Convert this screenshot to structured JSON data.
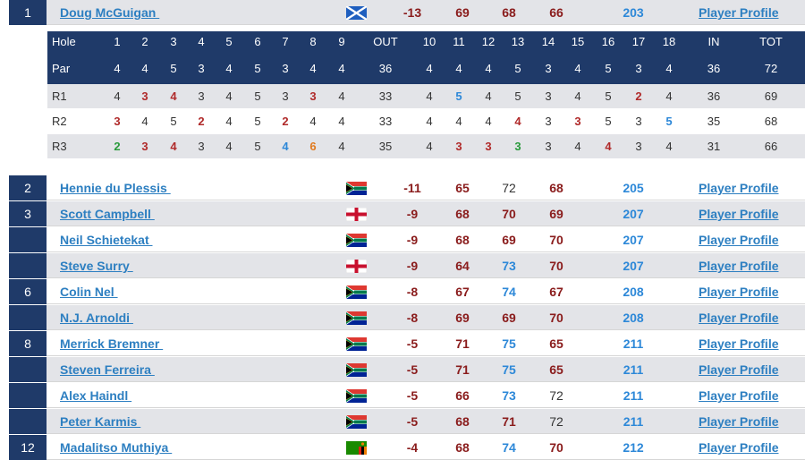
{
  "leader": {
    "pos": "1",
    "name": "Doug McGuigan ",
    "flag": "scotland-flag",
    "par": "-13",
    "r1": "69",
    "r2": "68",
    "r3": "66",
    "total": "203",
    "link": "Player Profile"
  },
  "scorecard": {
    "hole_label": "Hole",
    "par_label": "Par",
    "holes": [
      "1",
      "2",
      "3",
      "4",
      "5",
      "6",
      "7",
      "8",
      "9",
      "OUT",
      "10",
      "11",
      "12",
      "13",
      "14",
      "15",
      "16",
      "17",
      "18",
      "IN",
      "TOT"
    ],
    "pars": [
      "4",
      "4",
      "5",
      "3",
      "4",
      "5",
      "3",
      "4",
      "4",
      "36",
      "4",
      "4",
      "4",
      "5",
      "3",
      "4",
      "5",
      "3",
      "4",
      "36",
      "72"
    ],
    "rounds": [
      {
        "label": "R1",
        "scores": [
          "4",
          "3",
          "4",
          "3",
          "4",
          "5",
          "3",
          "3",
          "4",
          "33",
          "4",
          "5",
          "4",
          "5",
          "3",
          "4",
          "5",
          "2",
          "4",
          "36",
          "69"
        ],
        "styles": [
          "n",
          "r",
          "r",
          "n",
          "n",
          "n",
          "n",
          "r",
          "n",
          "n",
          "n",
          "b",
          "n",
          "n",
          "n",
          "n",
          "n",
          "r",
          "n",
          "n",
          "n"
        ]
      },
      {
        "label": "R2",
        "scores": [
          "3",
          "4",
          "5",
          "2",
          "4",
          "5",
          "2",
          "4",
          "4",
          "33",
          "4",
          "4",
          "4",
          "4",
          "3",
          "3",
          "5",
          "3",
          "5",
          "35",
          "68"
        ],
        "styles": [
          "r",
          "n",
          "n",
          "r",
          "n",
          "n",
          "r",
          "n",
          "n",
          "n",
          "n",
          "n",
          "n",
          "r",
          "n",
          "r",
          "n",
          "n",
          "b",
          "n",
          "n"
        ]
      },
      {
        "label": "R3",
        "scores": [
          "2",
          "3",
          "4",
          "3",
          "4",
          "5",
          "4",
          "6",
          "4",
          "35",
          "4",
          "3",
          "3",
          "3",
          "3",
          "4",
          "4",
          "3",
          "4",
          "31",
          "66"
        ],
        "styles": [
          "g",
          "r",
          "r",
          "n",
          "n",
          "n",
          "b",
          "o",
          "n",
          "n",
          "n",
          "r",
          "r",
          "g",
          "n",
          "n",
          "r",
          "n",
          "n",
          "n",
          "n"
        ]
      }
    ]
  },
  "players": [
    {
      "pos": "2",
      "name": "Hennie du Plessis ",
      "flag": "south-africa-flag",
      "par": "-11",
      "r1": "65",
      "r2": "72",
      "r3": "68",
      "total": "205",
      "link": "Player Profile",
      "s1": "r",
      "s2": "n",
      "s3": "r"
    },
    {
      "pos": "3",
      "name": "Scott Campbell ",
      "flag": "england-flag",
      "par": "-9",
      "r1": "68",
      "r2": "70",
      "r3": "69",
      "total": "207",
      "link": "Player Profile",
      "s1": "r",
      "s2": "r",
      "s3": "r"
    },
    {
      "pos": "",
      "name": "Neil Schietekat ",
      "flag": "south-africa-flag",
      "par": "-9",
      "r1": "68",
      "r2": "69",
      "r3": "70",
      "total": "207",
      "link": "Player Profile",
      "s1": "r",
      "s2": "r",
      "s3": "r"
    },
    {
      "pos": "",
      "name": "Steve Surry ",
      "flag": "england-flag",
      "par": "-9",
      "r1": "64",
      "r2": "73",
      "r3": "70",
      "total": "207",
      "link": "Player Profile",
      "s1": "r",
      "s2": "b",
      "s3": "r"
    },
    {
      "pos": "6",
      "name": "Colin Nel ",
      "flag": "south-africa-flag",
      "par": "-8",
      "r1": "67",
      "r2": "74",
      "r3": "67",
      "total": "208",
      "link": "Player Profile",
      "s1": "r",
      "s2": "b",
      "s3": "r"
    },
    {
      "pos": "",
      "name": "N.J. Arnoldi ",
      "flag": "south-africa-flag",
      "par": "-8",
      "r1": "69",
      "r2": "69",
      "r3": "70",
      "total": "208",
      "link": "Player Profile",
      "s1": "r",
      "s2": "r",
      "s3": "r"
    },
    {
      "pos": "8",
      "name": "Merrick Bremner ",
      "flag": "south-africa-flag",
      "par": "-5",
      "r1": "71",
      "r2": "75",
      "r3": "65",
      "total": "211",
      "link": "Player Profile",
      "s1": "r",
      "s2": "b",
      "s3": "r"
    },
    {
      "pos": "",
      "name": "Steven Ferreira ",
      "flag": "south-africa-flag",
      "par": "-5",
      "r1": "71",
      "r2": "75",
      "r3": "65",
      "total": "211",
      "link": "Player Profile",
      "s1": "r",
      "s2": "b",
      "s3": "r"
    },
    {
      "pos": "",
      "name": "Alex Haindl ",
      "flag": "south-africa-flag",
      "par": "-5",
      "r1": "66",
      "r2": "73",
      "r3": "72",
      "total": "211",
      "link": "Player Profile",
      "s1": "r",
      "s2": "b",
      "s3": "n"
    },
    {
      "pos": "",
      "name": "Peter Karmis ",
      "flag": "south-africa-flag",
      "par": "-5",
      "r1": "68",
      "r2": "71",
      "r3": "72",
      "total": "211",
      "link": "Player Profile",
      "s1": "r",
      "s2": "r",
      "s3": "n"
    },
    {
      "pos": "12",
      "name": "Madalitso Muthiya ",
      "flag": "zambia-flag",
      "par": "-4",
      "r1": "68",
      "r2": "74",
      "r3": "70",
      "total": "212",
      "link": "Player Profile",
      "s1": "r",
      "s2": "b",
      "s3": "r"
    }
  ]
}
